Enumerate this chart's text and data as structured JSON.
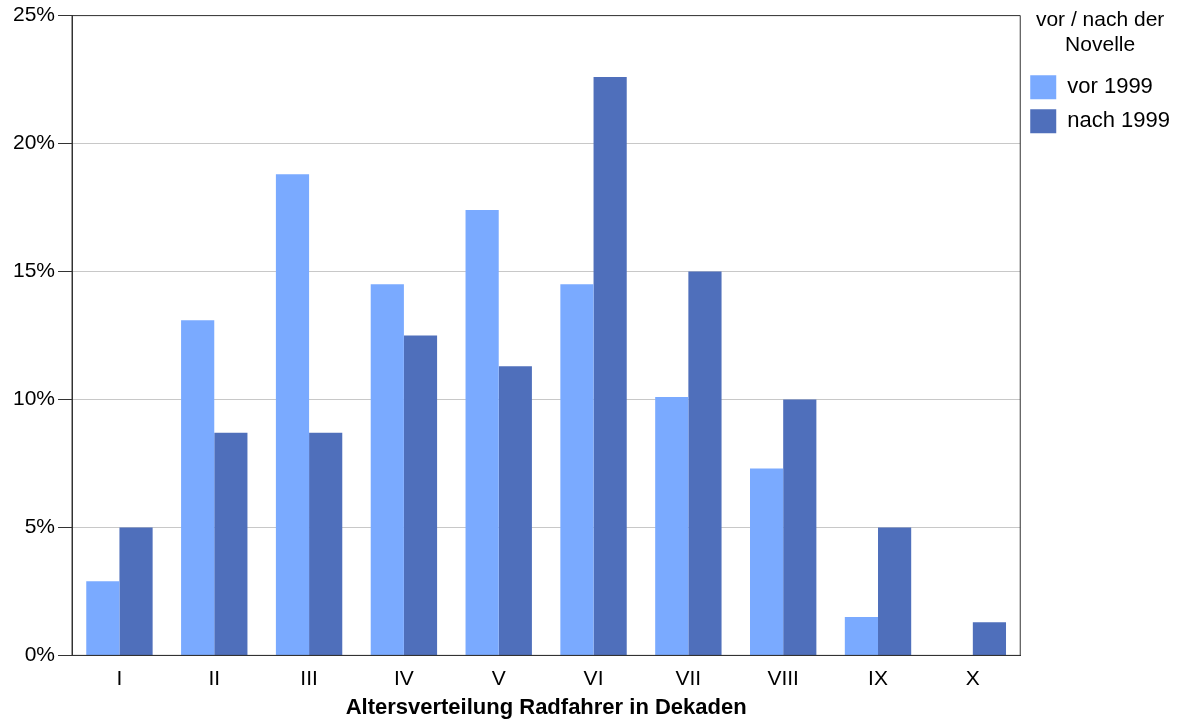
{
  "chart_data": {
    "type": "bar",
    "xlabel": "Altersverteilung Radfahrer in Dekaden",
    "legend_title": "vor / nach der Novelle",
    "categories": [
      "I",
      "II",
      "III",
      "IV",
      "V",
      "VI",
      "VII",
      "VIII",
      "IX",
      "X"
    ],
    "series": [
      {
        "name": "vor 1999",
        "color": "#7aaaff",
        "values": [
          2.9,
          13.1,
          18.8,
          14.5,
          17.4,
          14.5,
          10.1,
          7.3,
          1.5,
          0
        ]
      },
      {
        "name": "nach 1999",
        "color": "#4f6fbb",
        "values": [
          5.0,
          8.7,
          8.7,
          12.5,
          11.3,
          22.6,
          15.0,
          10.0,
          5.0,
          1.3
        ]
      }
    ],
    "ylim": [
      0,
      25
    ],
    "yticks": [
      {
        "value": 0,
        "label": "0%"
      },
      {
        "value": 5,
        "label": "5%"
      },
      {
        "value": 10,
        "label": "10%"
      },
      {
        "value": 15,
        "label": "15%"
      },
      {
        "value": 20,
        "label": "20%"
      },
      {
        "value": 25,
        "label": "25%"
      }
    ],
    "grid": "y",
    "legend": "top right"
  }
}
